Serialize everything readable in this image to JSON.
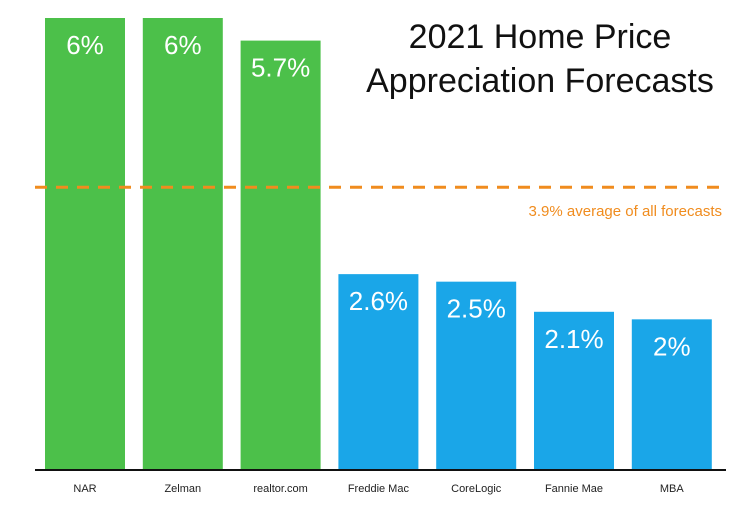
{
  "chart_data": {
    "type": "bar",
    "title_lines": [
      "2021 Home Price",
      "Appreciation Forecasts"
    ],
    "categories": [
      "NAR",
      "Zelman",
      "realtor.com",
      "Freddie Mac",
      "CoreLogic",
      "Fannie Mae",
      "MBA"
    ],
    "values": [
      6,
      6,
      5.7,
      2.6,
      2.5,
      2.1,
      2
    ],
    "data_labels": [
      "6%",
      "6%",
      "5.7%",
      "2.6%",
      "2.5%",
      "2.1%",
      "2%"
    ],
    "bar_colors": [
      "#4cc04a",
      "#4cc04a",
      "#4cc04a",
      "#1aa6e8",
      "#1aa6e8",
      "#1aa6e8",
      "#1aa6e8"
    ],
    "reference_line": {
      "value": 3.9,
      "label": "3.9% average of all forecasts",
      "color": "#f08c1e",
      "style": "dashed"
    },
    "xlabel": "",
    "ylabel": "",
    "ylim": [
      0,
      6
    ],
    "grid": false,
    "legend": "none"
  }
}
